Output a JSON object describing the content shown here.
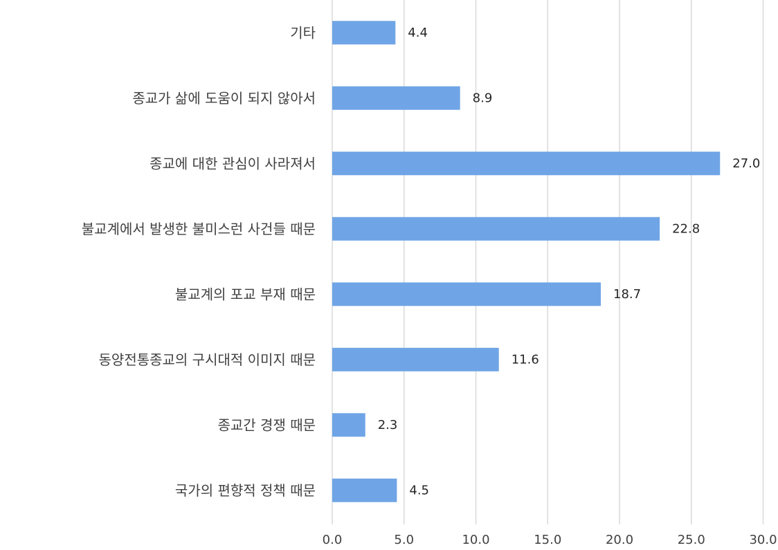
{
  "chart_data": {
    "type": "bar",
    "orientation": "horizontal",
    "categories": [
      "기타",
      "종교가 삶에 도움이 되지 않아서",
      "종교에 대한 관심이 사라져서",
      "불교계에서 발생한 불미스런 사건들 때문",
      "불교계의 포교 부재 때문",
      "동양전통종교의 구시대적 이미지 때문",
      "종교간 경쟁 때문",
      "국가의 편향적 정책 때문"
    ],
    "values": [
      4.4,
      8.9,
      27.0,
      22.8,
      18.7,
      11.6,
      2.3,
      4.5
    ],
    "value_labels": [
      "4.4",
      "8.9",
      "27.0",
      "22.8",
      "18.7",
      "11.6",
      "2.3",
      "4.5"
    ],
    "xlim": [
      0,
      30
    ],
    "x_ticks": [
      "0.0",
      "5.0",
      "10.0",
      "15.0",
      "20.0",
      "25.0",
      "30.0"
    ],
    "grid": "vertical",
    "bar_color": "#6fa5e6",
    "title": "",
    "xlabel": "",
    "ylabel": ""
  }
}
